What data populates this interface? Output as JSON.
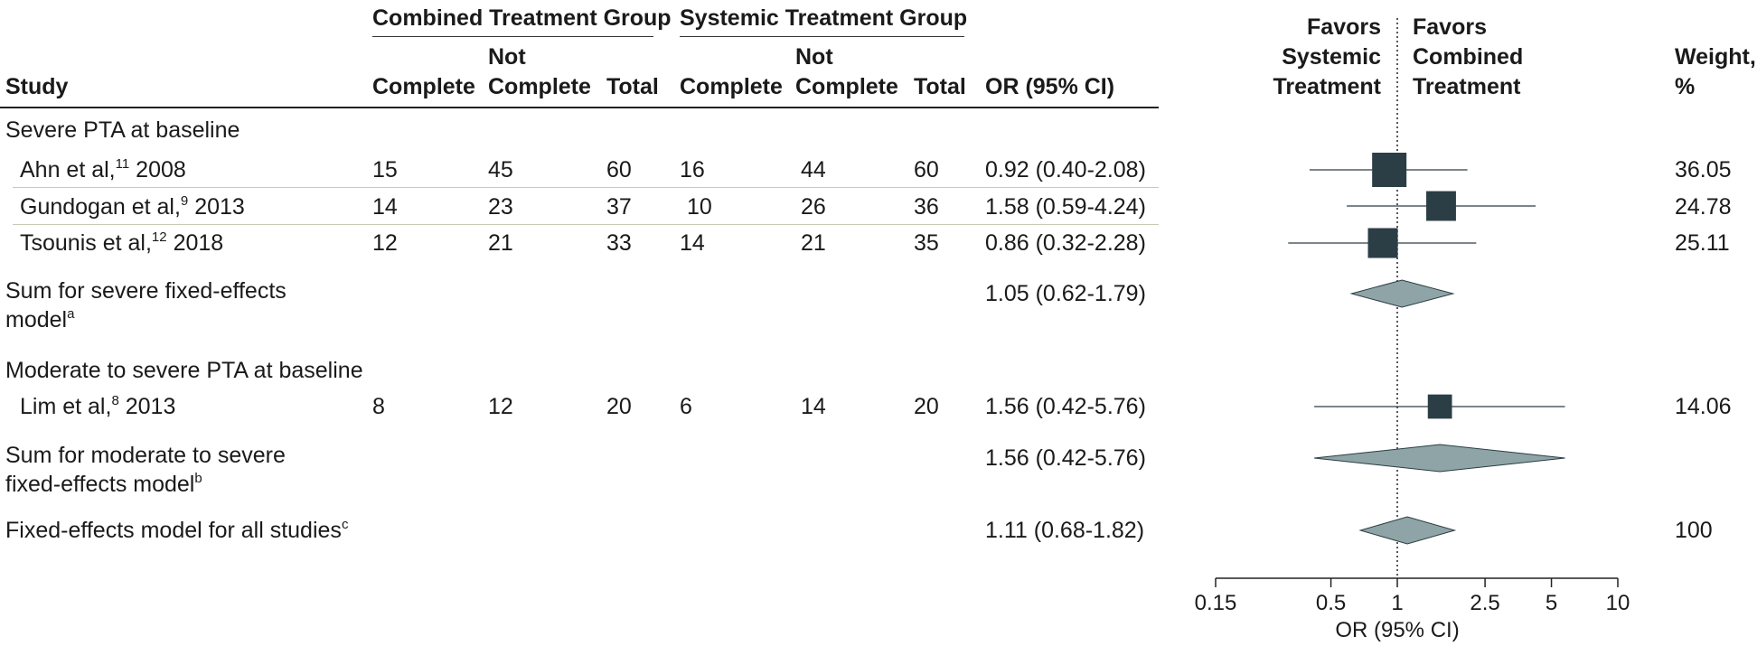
{
  "headers": {
    "study": "Study",
    "combined_group": "Combined Treatment Group",
    "systemic_group": "Systemic Treatment Group",
    "complete": "Complete",
    "not": "Not",
    "complete2": "Complete",
    "total": "Total",
    "or_ci": "OR (95% CI)",
    "favors_left_1": "Favors",
    "favors_left_2": "Systemic",
    "favors_left_3": "Treatment",
    "favors_right_1": "Favors",
    "favors_right_2": "Combined",
    "favors_right_3": "Treatment",
    "weight_1": "Weight,",
    "weight_2": "%"
  },
  "rows": [
    {
      "type": "group",
      "label": "Severe PTA at baseline"
    },
    {
      "type": "study",
      "label": "Ahn et al,",
      "sup": "11",
      "year": "2008",
      "c_complete": "15",
      "c_not": "45",
      "c_total": "60",
      "s_complete": "16",
      "s_not": "44",
      "s_total": "60",
      "or_text": "0.92 (0.40-2.08)",
      "weight": "36.05"
    },
    {
      "type": "study",
      "label": "Gundogan et al,",
      "sup": "9",
      "year": "2013",
      "c_complete": "14",
      "c_not": "23",
      "c_total": "37",
      "s_complete": "10",
      "s_not": "26",
      "s_total": "36",
      "or_text": "1.58 (0.59-4.24)",
      "weight": "24.78"
    },
    {
      "type": "study",
      "label": "Tsounis et al,",
      "sup": "12",
      "year": "2018",
      "c_complete": "12",
      "c_not": "21",
      "c_total": "33",
      "s_complete": "14",
      "s_not": "21",
      "s_total": "35",
      "or_text": "0.86 (0.32-2.28)",
      "weight": "25.11"
    },
    {
      "type": "summary",
      "label1": "Sum for severe fixed-effects",
      "label2": "model",
      "sup": "a",
      "or_text": "1.05 (0.62-1.79)"
    },
    {
      "type": "group",
      "label": "Moderate to severe PTA at baseline"
    },
    {
      "type": "study",
      "label": "Lim et al,",
      "sup": "8",
      "year": "2013",
      "c_complete": "8",
      "c_not": "12",
      "c_total": "20",
      "s_complete": "6",
      "s_not": "14",
      "s_total": "20",
      "or_text": "1.56 (0.42-5.76)",
      "weight": "14.06"
    },
    {
      "type": "summary",
      "label1": "Sum for moderate to severe",
      "label2": "fixed-effects model",
      "sup": "b",
      "or_text": "1.56 (0.42-5.76)"
    },
    {
      "type": "summary",
      "label1": "Fixed-effects model for all studies",
      "sup": "c",
      "or_text": "1.11 (0.68-1.82)",
      "weight": "100"
    }
  ],
  "chart_data": {
    "type": "scatter",
    "xlabel": "OR (95% CI)",
    "xscale": "log",
    "xlim": [
      0.15,
      10
    ],
    "xticks": [
      0.15,
      0.5,
      1,
      2.5,
      5,
      10
    ],
    "xtick_labels": [
      "0.15",
      "0.5",
      "1",
      "2.5",
      "5",
      "10"
    ],
    "reference_line": 1,
    "studies": [
      {
        "name": "Ahn et al, 2008",
        "or": 0.92,
        "lo": 0.4,
        "hi": 2.08,
        "weight": 36.05
      },
      {
        "name": "Gundogan et al, 2013",
        "or": 1.58,
        "lo": 0.59,
        "hi": 4.24,
        "weight": 24.78
      },
      {
        "name": "Tsounis et al, 2018",
        "or": 0.86,
        "lo": 0.32,
        "hi": 2.28,
        "weight": 25.11
      },
      {
        "name": "Lim et al, 2013",
        "or": 1.56,
        "lo": 0.42,
        "hi": 5.76,
        "weight": 14.06
      }
    ],
    "summaries": [
      {
        "name": "Sum for severe fixed-effects model",
        "or": 1.05,
        "lo": 0.62,
        "hi": 1.79
      },
      {
        "name": "Sum for moderate to severe fixed-effects model",
        "or": 1.56,
        "lo": 0.42,
        "hi": 5.76
      },
      {
        "name": "Fixed-effects model for all studies",
        "or": 1.11,
        "lo": 0.68,
        "hi": 1.82
      }
    ],
    "colors": {
      "square": "#2c3e45",
      "diamond": "#8fa4a6",
      "rule_gray": "#c9c9b6"
    }
  }
}
